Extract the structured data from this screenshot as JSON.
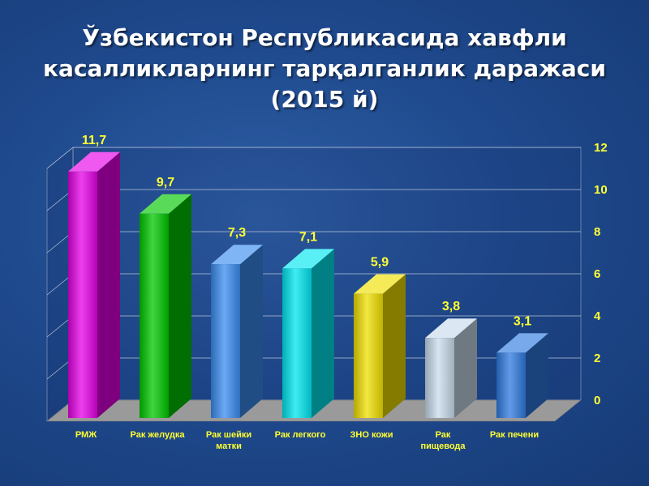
{
  "title": {
    "line1": "Ўзбекистон Республикасида хавфли",
    "line2": "касалликларнинг тарқалганлик даражаси",
    "line3": "(2015 й)"
  },
  "chart_data": {
    "type": "bar",
    "categories": [
      "РМЖ",
      "Рак желудка",
      "Рак шейки матки",
      "Рак легкого",
      "ЗНО кожи",
      "Рак пищевода",
      "Рак печени"
    ],
    "category_lines": [
      [
        "РМЖ"
      ],
      [
        "Рак желудка"
      ],
      [
        "Рак шейки",
        "матки"
      ],
      [
        "Рак легкого"
      ],
      [
        "ЗНО кожи"
      ],
      [
        "Рак",
        "пищевода"
      ],
      [
        "Рак печени"
      ]
    ],
    "values": [
      11.7,
      9.7,
      7.3,
      7.1,
      5.9,
      3.8,
      3.1
    ],
    "value_labels": [
      "11,7",
      "9,7",
      "7,3",
      "7,1",
      "5,9",
      "3,8",
      "3,1"
    ],
    "colors": [
      "#e600e6",
      "#00c800",
      "#3a8cf0",
      "#00e6f0",
      "#f0e000",
      "#c8dcec",
      "#2f7ae0"
    ],
    "yticks": [
      "0",
      "2",
      "4",
      "6",
      "8",
      "10",
      "12"
    ],
    "ylim": [
      0,
      12
    ],
    "xlabel": "",
    "ylabel": "",
    "grid": true,
    "yaxis_side": "right",
    "label_color": "#ffff33"
  }
}
